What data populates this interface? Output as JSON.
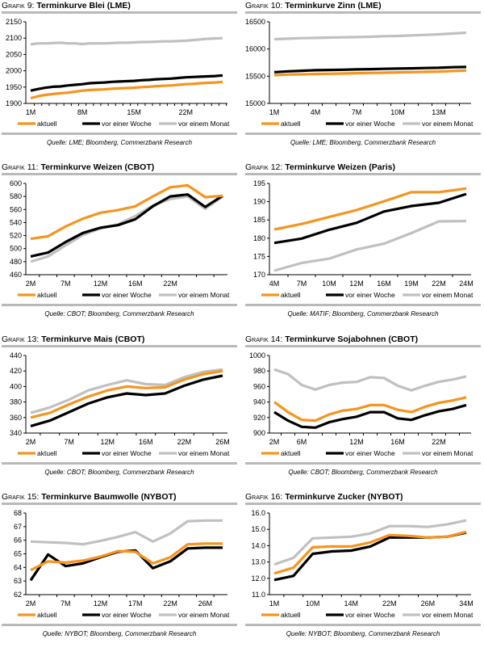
{
  "legend_labels": [
    "aktuell",
    "vor einer Woche",
    "vor einem Monat"
  ],
  "series_colors": {
    "aktuell": "#f7941d",
    "vor einer Woche": "#000000",
    "vor einem Monat": "#c0c0c0"
  },
  "chart_data": [
    {
      "type": "line",
      "grafik": "Grafik 9:",
      "title": "Terminkurve Blei (LME)",
      "source": "Quelle: LME; Bloomberg, Commerzbank Research",
      "ylim": [
        1900,
        2150
      ],
      "yticks": [
        1900,
        1950,
        2000,
        2050,
        2100,
        2150
      ],
      "categories": [
        "1M",
        "2M",
        "3M",
        "4M",
        "5M",
        "6M",
        "7M",
        "8M",
        "9M",
        "10M",
        "11M",
        "12M",
        "13M",
        "14M",
        "15M",
        "16M",
        "17M",
        "18M",
        "19M",
        "20M",
        "21M",
        "22M",
        "23M",
        "24M",
        "25M",
        "26M",
        "27M"
      ],
      "xticks": [
        "1M",
        "8M",
        "15M",
        "22M"
      ],
      "series": [
        {
          "name": "aktuell",
          "values": [
            1916,
            1922,
            1926,
            1929,
            1931,
            1933,
            1936,
            1939,
            1941,
            1942,
            1943,
            1945,
            1946,
            1947,
            1948,
            1950,
            1951,
            1953,
            1954,
            1955,
            1957,
            1959,
            1960,
            1962,
            1963,
            1964,
            1966
          ]
        },
        {
          "name": "vor einer Woche",
          "values": [
            1939,
            1944,
            1948,
            1951,
            1952,
            1955,
            1957,
            1959,
            1962,
            1963,
            1964,
            1966,
            1967,
            1968,
            1969,
            1971,
            1972,
            1974,
            1975,
            1976,
            1978,
            1980,
            1981,
            1982,
            1983,
            1984,
            1986
          ]
        },
        {
          "name": "vor einem Monat",
          "values": [
            2081,
            2084,
            2084,
            2085,
            2086,
            2084,
            2084,
            2082,
            2084,
            2084,
            2084,
            2085,
            2086,
            2086,
            2087,
            2088,
            2088,
            2089,
            2090,
            2090,
            2091,
            2092,
            2094,
            2096,
            2098,
            2099,
            2100
          ]
        }
      ]
    },
    {
      "type": "line",
      "grafik": "Grafik 10:",
      "title": "Terminkurve Zinn (LME)",
      "source": "Quelle: LME; Bloomberg, Commerzbank Research",
      "ylim": [
        15000,
        16500
      ],
      "yticks": [
        15000,
        15500,
        16000,
        16500
      ],
      "categories": [
        "1M",
        "2M",
        "3M",
        "4M",
        "5M",
        "6M",
        "7M",
        "8M",
        "9M",
        "10M",
        "11M",
        "12M",
        "13M",
        "14M",
        "15M"
      ],
      "xticks": [
        "1M",
        "4M",
        "7M",
        "10M",
        "13M"
      ],
      "series": [
        {
          "name": "aktuell",
          "values": [
            15520,
            15530,
            15535,
            15540,
            15545,
            15550,
            15555,
            15560,
            15565,
            15570,
            15575,
            15580,
            15585,
            15595,
            15605
          ]
        },
        {
          "name": "vor einer Woche",
          "values": [
            15575,
            15590,
            15600,
            15610,
            15615,
            15620,
            15625,
            15630,
            15635,
            15640,
            15645,
            15650,
            15655,
            15665,
            15670
          ]
        },
        {
          "name": "vor einem Monat",
          "values": [
            16180,
            16190,
            16200,
            16205,
            16210,
            16215,
            16220,
            16225,
            16235,
            16240,
            16250,
            16260,
            16270,
            16285,
            16300
          ]
        }
      ]
    },
    {
      "type": "line",
      "grafik": "Grafik 11:",
      "title": "Terminkurve Weizen (CBOT)",
      "source": "Quelle: CBOT; Bloomberg, Commerzbank Research",
      "ylim": [
        460,
        600
      ],
      "yticks": [
        460,
        480,
        500,
        520,
        540,
        560,
        580,
        600
      ],
      "categories": [
        "2M",
        "5M",
        "7M",
        "10M",
        "12M",
        "14M",
        "16M",
        "19M",
        "22M",
        "24M",
        "26M",
        "28M"
      ],
      "xticks": [
        "2M",
        "7M",
        "12M",
        "16M",
        "22M"
      ],
      "series": [
        {
          "name": "aktuell",
          "values": [
            515,
            519,
            534,
            546,
            555,
            559,
            565,
            580,
            594,
            597,
            579,
            581
          ]
        },
        {
          "name": "vor einer Woche",
          "values": [
            488,
            494,
            510,
            524,
            532,
            536,
            545,
            565,
            580,
            583,
            564,
            581
          ]
        },
        {
          "name": "vor einem Monat",
          "values": [
            480,
            488,
            505,
            521,
            531,
            537,
            550,
            566,
            576,
            580,
            561,
            580
          ]
        }
      ]
    },
    {
      "type": "line",
      "grafik": "Grafik 12:",
      "title": "Terminkurve Weizen (Paris)",
      "source": "Quelle: MATIF; Bloomberg, Commerzbank Research",
      "ylim": [
        170,
        195
      ],
      "yticks": [
        170,
        175,
        180,
        185,
        190,
        195
      ],
      "categories": [
        "4M",
        "7M",
        "10M",
        "12M",
        "16M",
        "19M",
        "22M",
        "24M"
      ],
      "xticks": [
        "4M",
        "7M",
        "10M",
        "12M",
        "16M",
        "19M",
        "22M",
        "24M"
      ],
      "series": [
        {
          "name": "aktuell",
          "values": [
            182.4,
            183.9,
            185.8,
            187.7,
            190.1,
            192.6,
            192.6,
            193.6
          ]
        },
        {
          "name": "vor einer Woche",
          "values": [
            178.7,
            179.9,
            182.3,
            184.2,
            187.3,
            188.8,
            189.7,
            192.1
          ]
        },
        {
          "name": "vor einem Monat",
          "values": [
            171.1,
            173.2,
            174.4,
            176.9,
            178.5,
            181.4,
            184.6,
            184.7
          ]
        }
      ]
    },
    {
      "type": "line",
      "grafik": "Grafik 13:",
      "title": "Terminkurve Mais (CBOT)",
      "source": "Quelle: CBOT; Bloomberg, Commerzbank Research",
      "ylim": [
        340,
        440
      ],
      "yticks": [
        340,
        360,
        380,
        400,
        420,
        440
      ],
      "categories": [
        "2M",
        "5M",
        "7M",
        "10M",
        "12M",
        "14M",
        "16M",
        "19M",
        "22M",
        "24M",
        "26M"
      ],
      "xticks": [
        "2M",
        "7M",
        "12M",
        "16M",
        "22M",
        "26M"
      ],
      "series": [
        {
          "name": "aktuell",
          "values": [
            360,
            366,
            377,
            387,
            395,
            400,
            398,
            399,
            409,
            416,
            420
          ]
        },
        {
          "name": "vor einer Woche",
          "values": [
            349,
            356,
            367,
            378,
            386,
            391,
            389,
            391,
            401,
            409,
            414
          ]
        },
        {
          "name": "vor einem Monat",
          "values": [
            366,
            373,
            383,
            395,
            402,
            408,
            403,
            402,
            412,
            419,
            422
          ]
        }
      ]
    },
    {
      "type": "line",
      "grafik": "Grafik 14:",
      "title": "Terminkurve Sojabohnen (CBOT)",
      "source": "Quelle: CBOT; Bloomberg, Commerzbank Research",
      "ylim": [
        900,
        1000
      ],
      "yticks": [
        900,
        920,
        940,
        960,
        980,
        1000
      ],
      "categories": [
        "2M",
        "4M",
        "6M",
        "7M",
        "9M",
        "11M",
        "12M",
        "14M",
        "15M",
        "16M",
        "18M",
        "20M",
        "22M",
        "23M",
        "25M"
      ],
      "xticks": [
        "2M",
        "6M",
        "12M",
        "16M",
        "22M"
      ],
      "series": [
        {
          "name": "aktuell",
          "values": [
            940,
            927,
            917,
            916,
            924,
            929,
            931,
            936,
            936,
            930,
            927,
            934,
            939,
            942,
            946
          ]
        },
        {
          "name": "vor einer Woche",
          "values": [
            927,
            916,
            908,
            907,
            914,
            918,
            921,
            927,
            927,
            919,
            917,
            923,
            928,
            931,
            936
          ]
        },
        {
          "name": "vor einem Monat",
          "values": [
            982,
            976,
            962,
            956,
            962,
            965,
            966,
            972,
            971,
            961,
            955,
            961,
            966,
            969,
            973
          ]
        }
      ]
    },
    {
      "type": "line",
      "grafik": "Grafik 15:",
      "title": "Terminkurve Baumwolle (NYBOT)",
      "source": "Quelle: NYBOT; Bloomberg, Commerzbank Research",
      "ylim": [
        62,
        68
      ],
      "yticks": [
        62,
        63,
        64,
        65,
        66,
        67,
        68
      ],
      "categories": [
        "2M",
        "4M",
        "7M",
        "9M",
        "12M",
        "14M",
        "17M",
        "19M",
        "22M",
        "24M",
        "26M",
        "28M"
      ],
      "xticks": [
        "2M",
        "7M",
        "12M",
        "17M",
        "22M",
        "26M"
      ],
      "series": [
        {
          "name": "aktuell",
          "values": [
            63.8,
            64.45,
            64.35,
            64.5,
            64.8,
            65.2,
            65.15,
            64.3,
            64.75,
            65.7,
            65.75,
            65.75
          ]
        },
        {
          "name": "vor einer Woche",
          "values": [
            63.05,
            64.95,
            64.1,
            64.3,
            64.75,
            65.15,
            65.25,
            63.95,
            64.45,
            65.4,
            65.45,
            65.45
          ]
        },
        {
          "name": "vor einem Monat",
          "values": [
            65.9,
            65.85,
            65.8,
            65.7,
            65.95,
            66.25,
            66.6,
            65.9,
            66.5,
            67.4,
            67.45,
            67.45
          ]
        }
      ]
    },
    {
      "type": "line",
      "grafik": "Grafik 16:",
      "title": "Terminkurve Zucker (NYBOT)",
      "source": "Quelle: NYBOT; Bloomberg, Commerzbank Research",
      "ylim": [
        11.0,
        16.0
      ],
      "yticks": [
        "11.0",
        "12.0",
        "13.0",
        "14.0",
        "15.0",
        "16.0"
      ],
      "categories": [
        "1M",
        "6M",
        "10M",
        "12M",
        "14M",
        "18M",
        "22M",
        "24M",
        "26M",
        "30M",
        "34M"
      ],
      "xticks": [
        "1M",
        "10M",
        "14M",
        "22M",
        "26M",
        "34M"
      ],
      "series": [
        {
          "name": "aktuell",
          "values": [
            12.3,
            12.65,
            13.9,
            13.95,
            13.95,
            14.2,
            14.65,
            14.6,
            14.5,
            14.55,
            14.85
          ]
        },
        {
          "name": "vor einer Woche",
          "values": [
            11.9,
            12.15,
            13.5,
            13.65,
            13.7,
            13.95,
            14.5,
            14.5,
            14.5,
            14.55,
            14.8
          ]
        },
        {
          "name": "vor einem Monat",
          "values": [
            12.85,
            13.25,
            14.45,
            14.5,
            14.55,
            14.75,
            15.2,
            15.2,
            15.15,
            15.3,
            15.55
          ]
        }
      ]
    }
  ]
}
